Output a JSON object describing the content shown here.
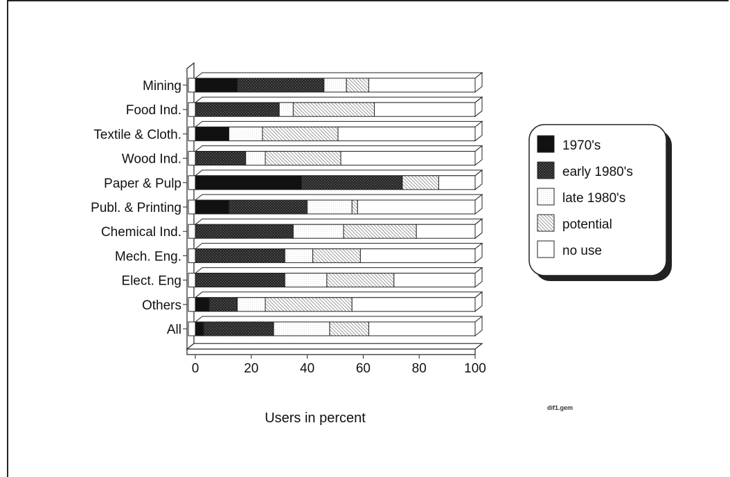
{
  "file_tag": "dif1.gem",
  "chart_data": {
    "type": "bar",
    "stacked": true,
    "orientation": "horizontal",
    "three_d": true,
    "title": "",
    "xlabel": "Users in percent",
    "ylabel": "",
    "xlim": [
      0,
      100
    ],
    "x_ticks": [
      "0",
      "20",
      "40",
      "60",
      "80",
      "100"
    ],
    "grid": false,
    "legend_position": "right",
    "categories": [
      "Mining",
      "Food Ind.",
      "Textile & Cloth.",
      "Wood Ind.",
      "Paper & Pulp",
      "Publ. & Printing",
      "Chemical Ind.",
      "Mech. Eng.",
      "Elect. Eng",
      "Others",
      "All"
    ],
    "series": [
      {
        "name": "1970's",
        "color": "#111111",
        "pattern": "solid",
        "values": [
          15,
          0,
          12,
          0,
          38,
          12,
          0,
          0,
          0,
          5,
          3
        ]
      },
      {
        "name": "early 1980's",
        "color": "#333333",
        "pattern": "dotted",
        "values": [
          31,
          30,
          0,
          18,
          36,
          28,
          35,
          32,
          32,
          10,
          25
        ]
      },
      {
        "name": "late 1980's",
        "color": "#ffffff",
        "pattern": "dots-light",
        "values": [
          8,
          5,
          12,
          7,
          0,
          16,
          18,
          10,
          15,
          10,
          20
        ]
      },
      {
        "name": "potential",
        "color": "#dddddd",
        "pattern": "hatch",
        "values": [
          8,
          29,
          27,
          27,
          13,
          2,
          26,
          17,
          24,
          31,
          14
        ]
      },
      {
        "name": "no use",
        "color": "#ffffff",
        "pattern": "none",
        "values": [
          38,
          36,
          49,
          48,
          13,
          42,
          21,
          41,
          29,
          44,
          38
        ]
      }
    ]
  }
}
